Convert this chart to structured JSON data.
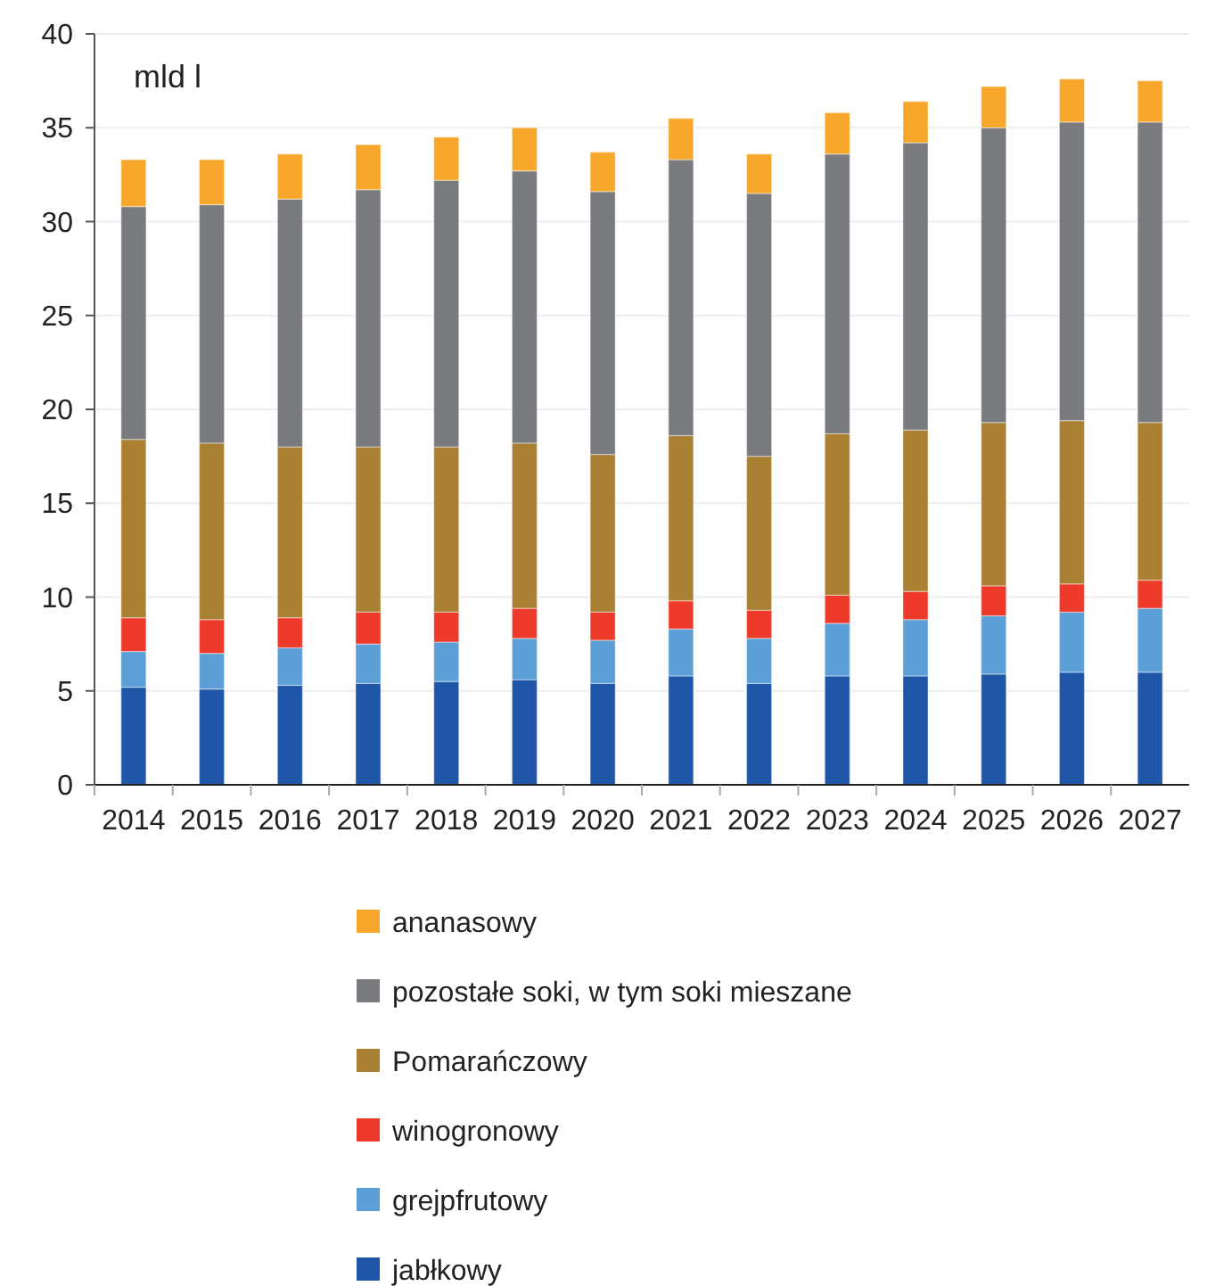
{
  "chart_data": {
    "type": "bar",
    "stacked": true,
    "ylabel": "mld l",
    "categories": [
      "2014",
      "2015",
      "2016",
      "2017",
      "2018",
      "2019",
      "2020",
      "2021",
      "2022",
      "2023",
      "2024",
      "2025",
      "2026",
      "2027"
    ],
    "series": [
      {
        "name": "jabłkowy",
        "color": "#1f56a8",
        "values": [
          5.2,
          5.1,
          5.3,
          5.4,
          5.5,
          5.6,
          5.4,
          5.8,
          5.4,
          5.8,
          5.8,
          5.9,
          6.0,
          6.0
        ]
      },
      {
        "name": "grejpfrutowy",
        "color": "#5b9fd6",
        "values": [
          1.9,
          1.9,
          2.0,
          2.1,
          2.1,
          2.2,
          2.3,
          2.5,
          2.4,
          2.8,
          3.0,
          3.1,
          3.2,
          3.4
        ]
      },
      {
        "name": "winogronowy",
        "color": "#ee3a2a",
        "values": [
          1.8,
          1.8,
          1.6,
          1.7,
          1.6,
          1.6,
          1.5,
          1.5,
          1.5,
          1.5,
          1.5,
          1.6,
          1.5,
          1.5
        ]
      },
      {
        "name": "Pomarańczowy",
        "color": "#aa8032",
        "values": [
          9.5,
          9.4,
          9.1,
          8.8,
          8.8,
          8.8,
          8.4,
          8.8,
          8.2,
          8.6,
          8.6,
          8.7,
          8.7,
          8.4
        ]
      },
      {
        "name": "pozostałe soki, w tym soki mieszane",
        "color": "#7a7b7f",
        "values": [
          12.4,
          12.7,
          13.2,
          13.7,
          14.2,
          14.5,
          14.0,
          14.7,
          14.0,
          14.9,
          15.3,
          15.7,
          15.9,
          16.0
        ]
      },
      {
        "name": "ananasowy",
        "color": "#f6a72c",
        "values": [
          2.5,
          2.4,
          2.4,
          2.4,
          2.3,
          2.3,
          2.1,
          2.2,
          2.1,
          2.2,
          2.2,
          2.2,
          2.3,
          2.2
        ]
      }
    ],
    "ylim": [
      0,
      40
    ],
    "yticks": [
      0,
      5,
      10,
      15,
      20,
      25,
      30,
      35,
      40
    ],
    "grid": "y",
    "legend": "bottom"
  }
}
